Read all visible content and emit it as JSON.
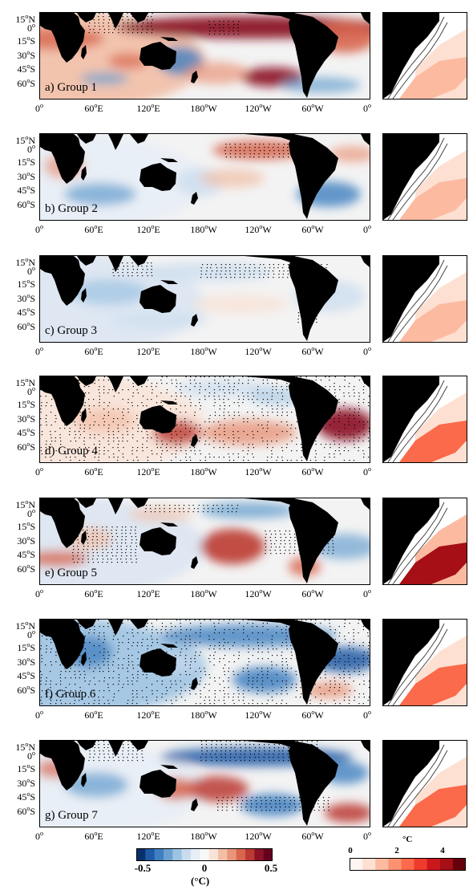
{
  "lat_labels": [
    {
      "deg": "15",
      "hemi": "N"
    },
    {
      "deg": "0",
      "hemi": ""
    },
    {
      "deg": "15",
      "hemi": "S"
    },
    {
      "deg": "30",
      "hemi": "S"
    },
    {
      "deg": "45",
      "hemi": "S"
    },
    {
      "deg": "60",
      "hemi": "S"
    }
  ],
  "lon_labels": [
    {
      "deg": "0",
      "hemi": ""
    },
    {
      "deg": "60",
      "hemi": "E"
    },
    {
      "deg": "120",
      "hemi": "E"
    },
    {
      "deg": "180",
      "hemi": "W"
    },
    {
      "deg": "120",
      "hemi": "W"
    },
    {
      "deg": "60",
      "hemi": "W"
    },
    {
      "deg": "0",
      "hemi": ""
    }
  ],
  "panels": [
    {
      "label": "a) Group 1"
    },
    {
      "label": "b) Group 2"
    },
    {
      "label": "c) Group 3"
    },
    {
      "label": "d) Group 4"
    },
    {
      "label": "e) Group 5"
    },
    {
      "label": "f) Group 6"
    },
    {
      "label": "g) Group 7"
    }
  ],
  "colorbar_left": {
    "ticks": [
      "-0.5",
      "0",
      "0.5"
    ],
    "unit": "(°C)",
    "colors": [
      "#08306b",
      "#1f5aa6",
      "#3f7fbf",
      "#6ba1d0",
      "#9dc3e2",
      "#c9dcee",
      "#e8eef6",
      "#f8f8f8",
      "#f8e3d8",
      "#f2bfa6",
      "#e9957a",
      "#d8664f",
      "#bb3a32",
      "#8c1326",
      "#67001f"
    ]
  },
  "colorbar_right": {
    "ticks": [
      "0",
      "2",
      "4"
    ],
    "unit": "°C",
    "colors": [
      "#fff5f0",
      "#fde0d2",
      "#fcbba1",
      "#fc9272",
      "#fb6a4a",
      "#ef3b2c",
      "#cb181d",
      "#a50f15",
      "#67000d"
    ]
  }
}
